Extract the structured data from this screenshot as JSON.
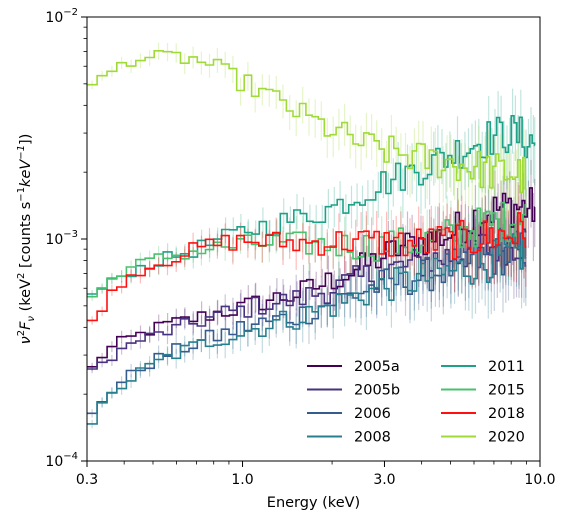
{
  "chart_data": {
    "type": "line",
    "xlabel": "Energy (keV)",
    "ylabel": "ν²F_ν (keV² [counts s⁻¹keV⁻¹])",
    "ylabel_parts": {
      "nu": "ν",
      "sup2": "2",
      "F": "F",
      "sub_nu": "ν",
      "open": " (keV",
      "sup2b": "2",
      "mid": " [counts s",
      "sup_neg1": "−1",
      "keV": "keV",
      "sup_neg1b": "−1",
      "close": "])"
    },
    "x_scale": "log",
    "y_scale": "log",
    "xlim": [
      0.3,
      10.0
    ],
    "ylim": [
      0.0001,
      0.01
    ],
    "x_ticks": [
      {
        "value": 0.3,
        "label": "0.3"
      },
      {
        "value": 1.0,
        "label": "1.0"
      },
      {
        "value": 3.0,
        "label": "3.0"
      },
      {
        "value": 10.0,
        "label": "10.0"
      }
    ],
    "y_ticks": [
      {
        "value": 0.0001,
        "base": "10",
        "exp": "−4"
      },
      {
        "value": 0.001,
        "base": "10",
        "exp": "−3"
      },
      {
        "value": 0.01,
        "base": "10",
        "exp": "−2"
      }
    ],
    "legend_position": "lower-right",
    "legend_columns": 2,
    "series": [
      {
        "name": "2005a",
        "color": "#440154",
        "points": [
          [
            0.3,
            0.000245
          ],
          [
            0.33,
            0.00029
          ],
          [
            0.38,
            0.00034
          ],
          [
            0.45,
            0.00037
          ],
          [
            0.55,
            0.00041
          ],
          [
            0.7,
            0.00044
          ],
          [
            0.85,
            0.00047
          ],
          [
            1.0,
            0.00049
          ],
          [
            1.2,
            0.00053
          ],
          [
            1.5,
            0.00056
          ],
          [
            2.0,
            0.00065
          ],
          [
            2.5,
            0.00074
          ],
          [
            3.0,
            0.00084
          ],
          [
            3.5,
            0.00093
          ],
          [
            4.0,
            0.00098
          ],
          [
            5.0,
            0.00105
          ],
          [
            6.0,
            0.00125
          ],
          [
            7.0,
            0.00135
          ],
          [
            8.0,
            0.0014
          ],
          [
            9.0,
            0.00138
          ],
          [
            9.6,
            0.00138
          ]
        ]
      },
      {
        "name": "2005b",
        "color": "#46327e",
        "points": [
          [
            0.3,
            0.00024
          ],
          [
            0.33,
            0.00027
          ],
          [
            0.38,
            0.00031
          ],
          [
            0.45,
            0.00035
          ],
          [
            0.55,
            0.00038
          ],
          [
            0.7,
            0.00042
          ],
          [
            0.85,
            0.00046
          ],
          [
            1.0,
            0.00048
          ],
          [
            1.2,
            0.00051
          ],
          [
            1.5,
            0.00053
          ],
          [
            2.0,
            0.0006
          ],
          [
            2.5,
            0.00066
          ],
          [
            3.0,
            0.00072
          ],
          [
            4.0,
            0.00078
          ],
          [
            5.0,
            0.00084
          ],
          [
            6.0,
            0.0009
          ],
          [
            7.0,
            0.00093
          ],
          [
            8.0,
            0.00096
          ],
          [
            9.0,
            0.00098
          ]
        ]
      },
      {
        "name": "2006",
        "color": "#365c8d",
        "points": [
          [
            0.3,
            0.00015
          ],
          [
            0.34,
            0.00019
          ],
          [
            0.38,
            0.00022
          ],
          [
            0.45,
            0.00026
          ],
          [
            0.55,
            0.0003
          ],
          [
            0.7,
            0.00034
          ],
          [
            0.85,
            0.00037
          ],
          [
            1.0,
            0.0004
          ],
          [
            1.3,
            0.00043
          ],
          [
            1.6,
            0.00046
          ],
          [
            2.0,
            0.00052
          ],
          [
            2.5,
            0.00058
          ],
          [
            3.0,
            0.00063
          ],
          [
            4.0,
            0.00068
          ],
          [
            5.0,
            0.00074
          ],
          [
            6.0,
            0.0008
          ],
          [
            7.0,
            0.00083
          ],
          [
            8.0,
            0.00087
          ],
          [
            9.0,
            0.0009
          ]
        ]
      },
      {
        "name": "2008",
        "color": "#277f8e",
        "points": [
          [
            0.3,
            0.000138
          ],
          [
            0.34,
            0.00018
          ],
          [
            0.38,
            0.00021
          ],
          [
            0.45,
            0.00025
          ],
          [
            0.55,
            0.00029
          ],
          [
            0.7,
            0.00033
          ],
          [
            0.85,
            0.00036
          ],
          [
            1.0,
            0.00038
          ],
          [
            1.3,
            0.00042
          ],
          [
            1.6,
            0.00045
          ],
          [
            2.0,
            0.0005
          ],
          [
            2.5,
            0.00056
          ],
          [
            3.0,
            0.00061
          ],
          [
            4.0,
            0.00066
          ],
          [
            5.0,
            0.00071
          ],
          [
            6.0,
            0.00076
          ],
          [
            7.0,
            0.0008
          ],
          [
            8.0,
            0.00084
          ],
          [
            9.0,
            0.00088
          ]
        ]
      },
      {
        "name": "2011",
        "color": "#1fa187",
        "points": [
          [
            0.3,
            0.00054
          ],
          [
            0.34,
            0.0006
          ],
          [
            0.38,
            0.00067
          ],
          [
            0.45,
            0.00074
          ],
          [
            0.55,
            0.00081
          ],
          [
            0.7,
            0.0009
          ],
          [
            0.85,
            0.00099
          ],
          [
            1.0,
            0.00108
          ],
          [
            1.3,
            0.00118
          ],
          [
            1.6,
            0.00125
          ],
          [
            2.0,
            0.00138
          ],
          [
            2.5,
            0.0016
          ],
          [
            3.0,
            0.0018
          ],
          [
            3.5,
            0.00195
          ],
          [
            4.0,
            0.0021
          ],
          [
            5.0,
            0.0024
          ],
          [
            6.0,
            0.0027
          ],
          [
            7.0,
            0.0029
          ],
          [
            8.0,
            0.003
          ],
          [
            9.0,
            0.0028
          ],
          [
            9.6,
            0.0027
          ]
        ]
      },
      {
        "name": "2015",
        "color": "#4ac16d",
        "points": [
          [
            0.3,
            0.00053
          ],
          [
            0.34,
            0.0006
          ],
          [
            0.38,
            0.0007
          ],
          [
            0.45,
            0.00077
          ],
          [
            0.55,
            0.00083
          ],
          [
            0.7,
            0.00088
          ],
          [
            0.85,
            0.00092
          ],
          [
            1.0,
            0.00094
          ],
          [
            1.3,
            0.00096
          ],
          [
            1.6,
            0.00095
          ],
          [
            2.0,
            0.00094
          ],
          [
            2.5,
            0.00093
          ],
          [
            3.0,
            0.00094
          ],
          [
            4.0,
            0.00097
          ],
          [
            5.0,
            0.00104
          ],
          [
            6.0,
            0.00112
          ],
          [
            7.0,
            0.00118
          ],
          [
            8.0,
            0.00122
          ],
          [
            9.0,
            0.00125
          ]
        ]
      },
      {
        "name": "2018",
        "color": "#ff1010",
        "points": [
          [
            0.3,
            0.0004
          ],
          [
            0.34,
            0.0005
          ],
          [
            0.38,
            0.00062
          ],
          [
            0.45,
            0.00072
          ],
          [
            0.55,
            0.0008
          ],
          [
            0.7,
            0.0009
          ],
          [
            0.85,
            0.00096
          ],
          [
            1.0,
            0.00098
          ],
          [
            1.3,
            0.00097
          ],
          [
            1.6,
            0.00096
          ],
          [
            2.0,
            0.00097
          ],
          [
            2.5,
            0.00098
          ],
          [
            3.0,
            0.00096
          ],
          [
            4.0,
            0.00096
          ],
          [
            5.0,
            0.00098
          ],
          [
            6.0,
            0.001
          ],
          [
            7.0,
            0.00103
          ],
          [
            8.0,
            0.00105
          ],
          [
            9.0,
            0.0011
          ]
        ]
      },
      {
        "name": "2020",
        "color": "#a0da39",
        "points": [
          [
            0.3,
            0.0047
          ],
          [
            0.35,
            0.0055
          ],
          [
            0.4,
            0.0062
          ],
          [
            0.45,
            0.0065
          ],
          [
            0.5,
            0.0066
          ],
          [
            0.6,
            0.0066
          ],
          [
            0.7,
            0.0064
          ],
          [
            0.8,
            0.006
          ],
          [
            0.9,
            0.0055
          ],
          [
            1.0,
            0.0051
          ],
          [
            1.2,
            0.0045
          ],
          [
            1.4,
            0.004
          ],
          [
            1.6,
            0.0036
          ],
          [
            1.8,
            0.0033
          ],
          [
            2.0,
            0.0031
          ],
          [
            2.5,
            0.0027
          ],
          [
            3.0,
            0.0025
          ],
          [
            3.5,
            0.0024
          ],
          [
            4.0,
            0.0023
          ],
          [
            5.0,
            0.0022
          ],
          [
            6.0,
            0.0021
          ],
          [
            7.0,
            0.002
          ],
          [
            8.0,
            0.002
          ],
          [
            9.0,
            0.0019
          ]
        ]
      }
    ]
  }
}
